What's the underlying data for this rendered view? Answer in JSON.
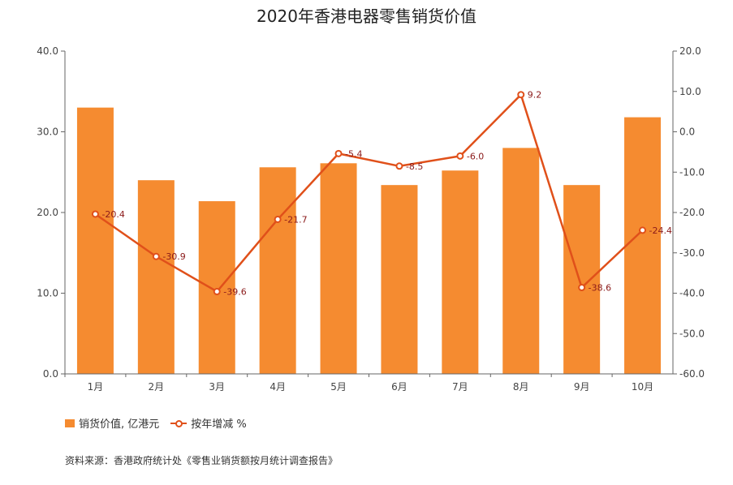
{
  "chart_data": {
    "type": "bar",
    "title": "2020年香港电器零售销货价值",
    "categories": [
      "1月",
      "2月",
      "3月",
      "4月",
      "5月",
      "6月",
      "7月",
      "8月",
      "9月",
      "10月"
    ],
    "series": [
      {
        "name": "销货价值, 亿港元",
        "type": "bar",
        "axis": "left",
        "values": [
          33.0,
          24.0,
          21.4,
          25.6,
          26.1,
          23.4,
          25.2,
          28.0,
          23.4,
          31.8
        ]
      },
      {
        "name": "按年增减 %",
        "type": "line",
        "axis": "right",
        "values": [
          -20.4,
          -30.9,
          -39.6,
          -21.7,
          -5.4,
          -8.5,
          -6.0,
          9.2,
          -38.6,
          -24.4
        ],
        "labels": [
          "-20.4",
          "-30.9",
          "-39.6",
          "-21.7",
          "-5.4",
          "-8.5",
          "-6.0",
          "9.2",
          "-38.6",
          "-24.4"
        ]
      }
    ],
    "y_left": {
      "min": 0,
      "max": 40,
      "ticks": [
        "0.0",
        "10.0",
        "20.0",
        "30.0",
        "40.0"
      ]
    },
    "y_right": {
      "min": -60,
      "max": 20,
      "ticks": [
        "-60.0",
        "-50.0",
        "-40.0",
        "-30.0",
        "-20.0",
        "-10.0",
        "0.0",
        "10.0",
        "20.0"
      ]
    },
    "grid": false,
    "legend_position": "bottom-left",
    "colors": {
      "bar": "#F58B30",
      "line": "#E0501A",
      "label": "#8B1A1A",
      "axis": "#666666"
    },
    "source": "资料来源：香港政府统计处《零售业销货额按月统计调查报告》"
  }
}
